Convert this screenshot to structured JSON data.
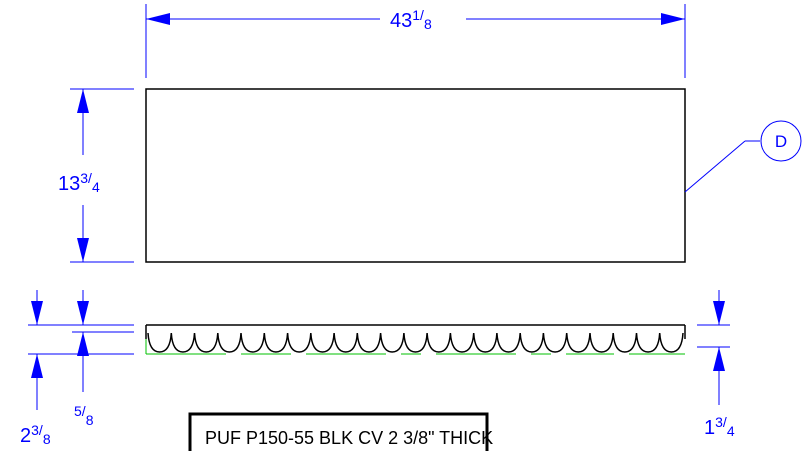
{
  "dimensions": {
    "overall_length": {
      "whole": "43",
      "num": "1",
      "den": "8"
    },
    "height": {
      "whole": "13",
      "num": "3",
      "den": "4"
    },
    "total_thickness": {
      "whole": "2",
      "num": "3",
      "den": "8"
    },
    "base_thickness": {
      "whole": "",
      "num": "5",
      "den": "8"
    },
    "convolute_depth": {
      "whole": "1",
      "num": "3",
      "den": "4"
    }
  },
  "balloon": {
    "label": "D"
  },
  "note": {
    "text": "PUF P150-55 BLK CV 2 3/8\" THICK"
  },
  "colors": {
    "dimension": "#0000ff",
    "object": "#000000",
    "hidden": "#00c000"
  }
}
